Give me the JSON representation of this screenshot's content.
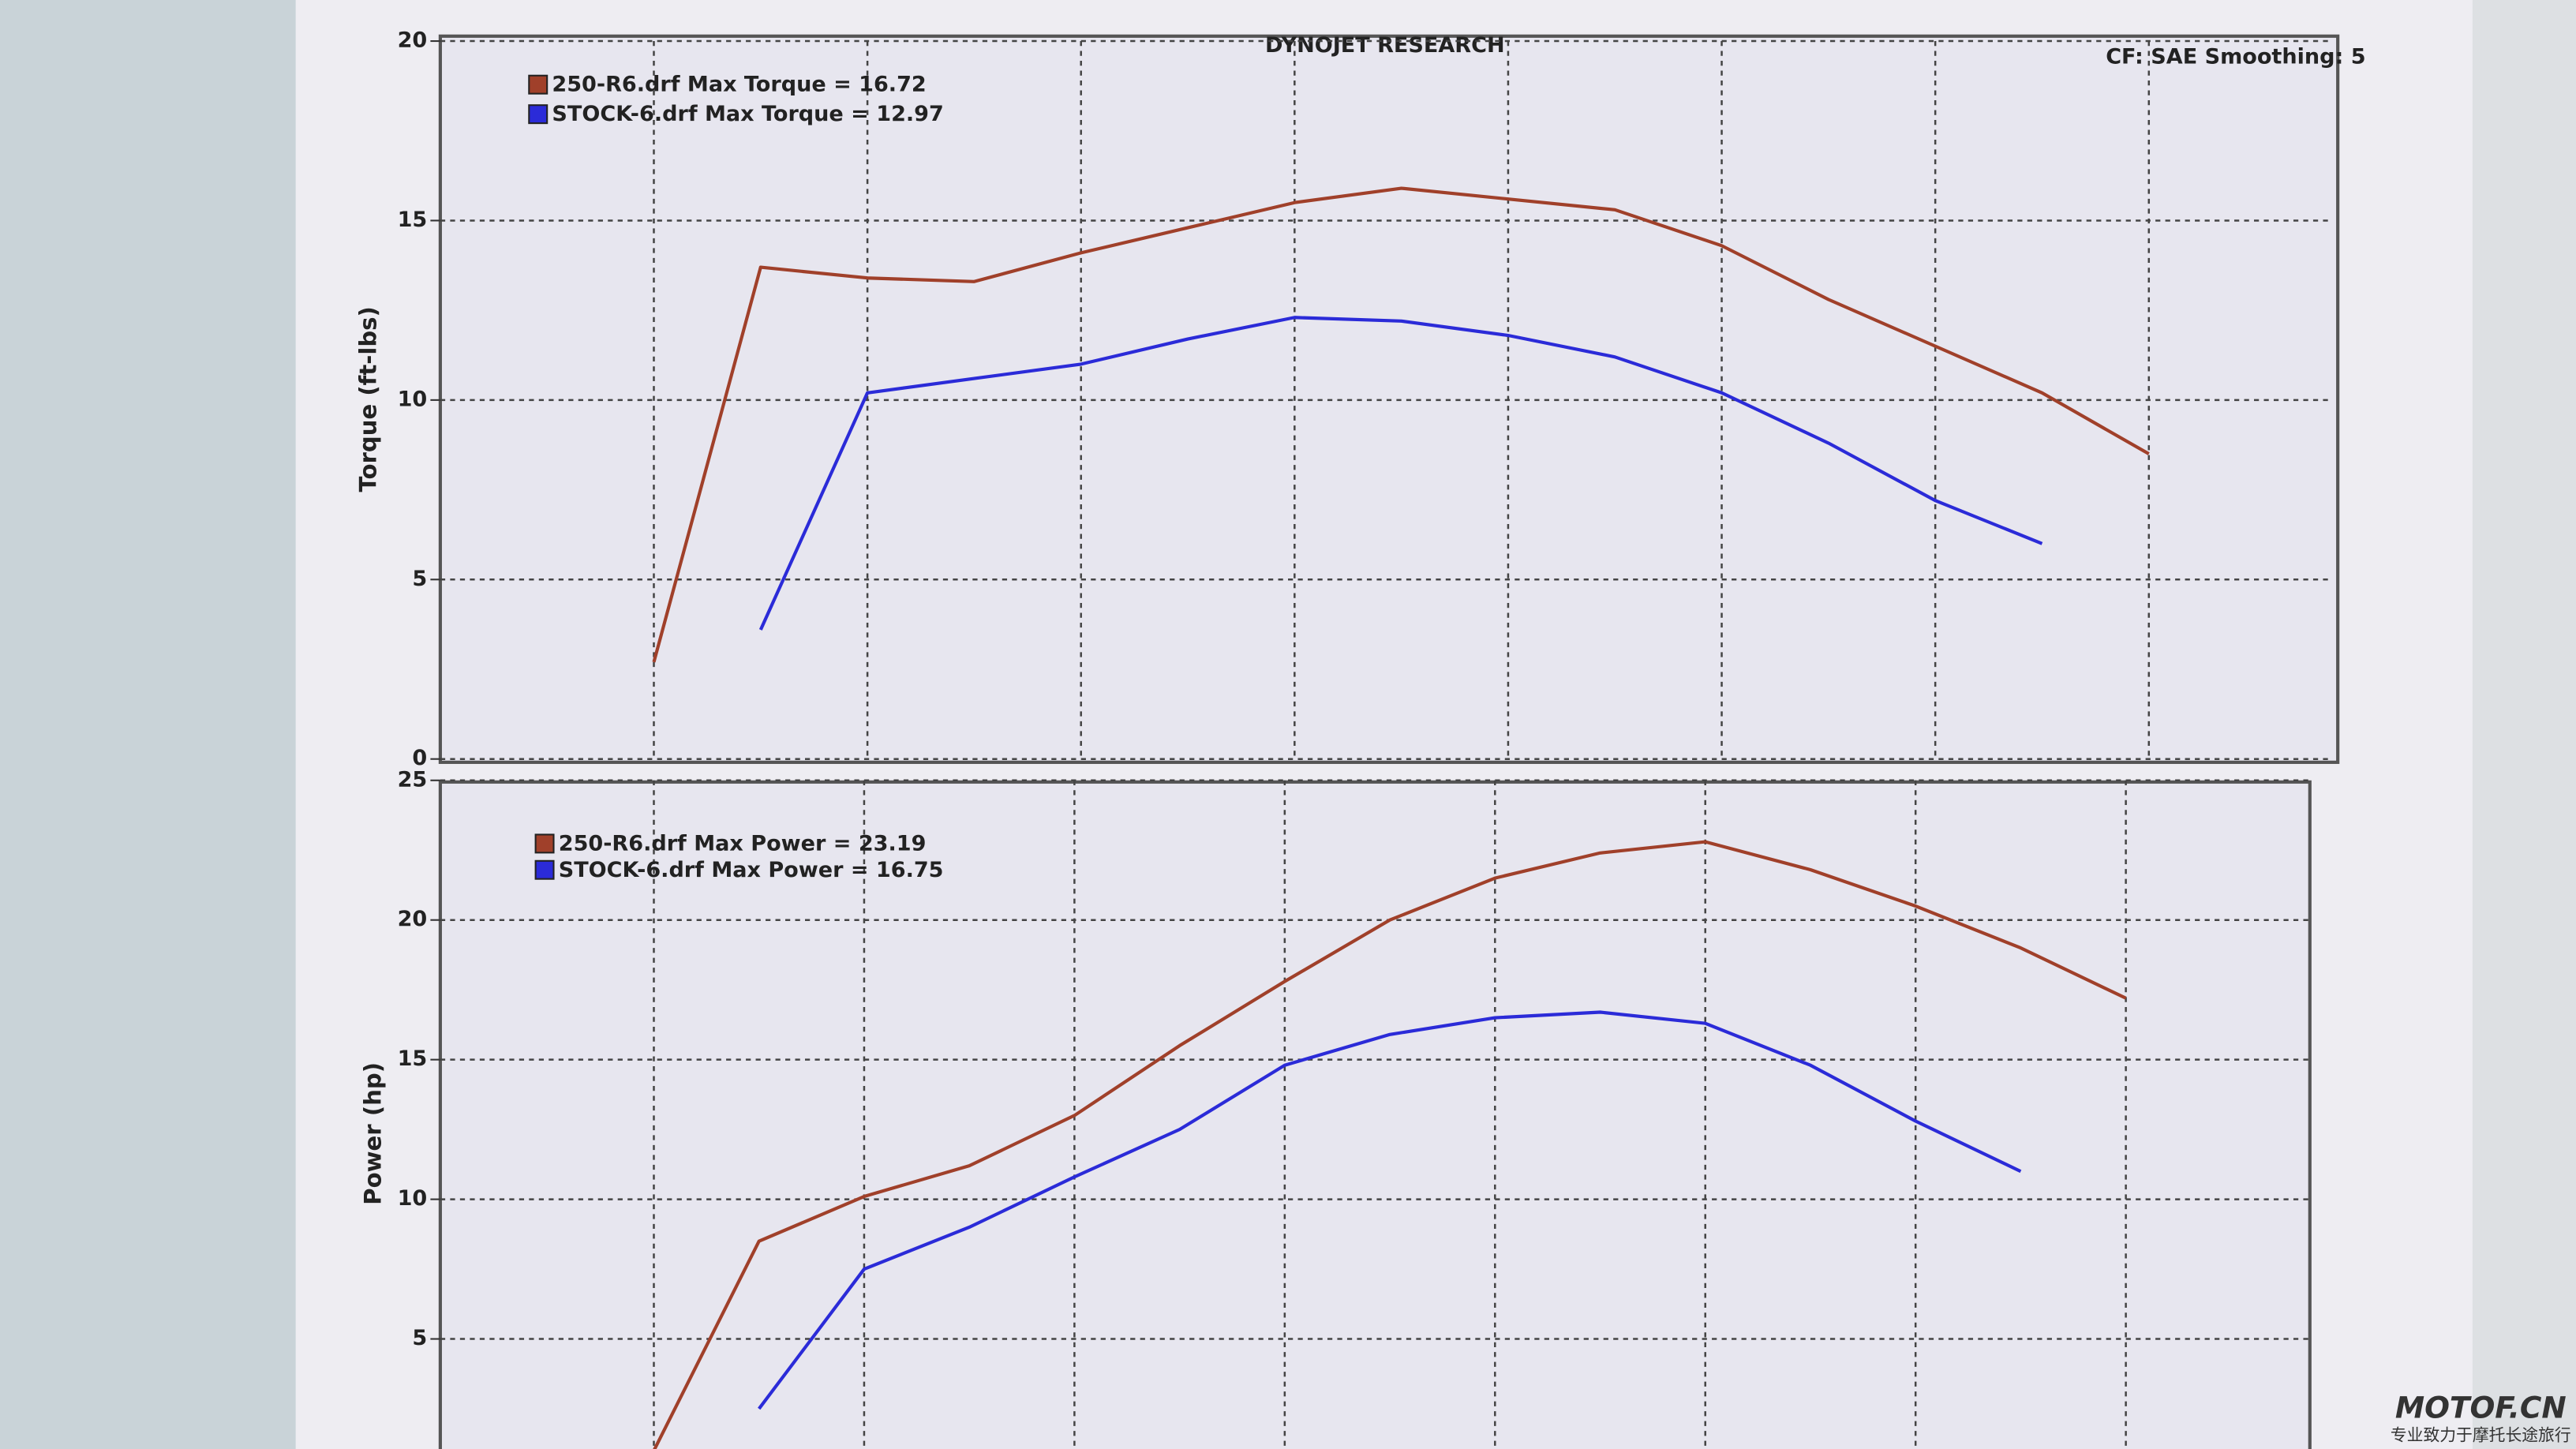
{
  "chart_data": [
    {
      "type": "line",
      "title": "DYNOJET RESEARCH",
      "subtitle": "CF: SAE  Smoothing: 5",
      "y_label": "Torque (ft-lbs)",
      "categories": [
        null,
        null,
        null,
        null,
        null,
        null,
        null,
        null,
        null,
        null,
        null,
        null,
        null,
        null,
        null
      ],
      "series": [
        {
          "name": "250-R6.drf Max Torque = 16.72",
          "color": "#a0402a",
          "values": [
            2.7,
            13.7,
            13.4,
            13.3,
            14.1,
            14.8,
            15.5,
            15.9,
            15.6,
            15.3,
            14.3,
            12.8,
            11.5,
            10.2,
            8.5
          ]
        },
        {
          "name": "STOCK-6.drf Max Torque = 12.97",
          "color": "#2b2bd8",
          "values": [
            null,
            3.6,
            10.2,
            10.6,
            11.0,
            11.7,
            12.3,
            12.2,
            11.8,
            11.2,
            10.2,
            8.8,
            7.2,
            6.0,
            null
          ]
        }
      ],
      "ylim": [
        0,
        20
      ],
      "yticks": [
        0,
        5,
        10,
        15,
        20
      ],
      "grid": true
    },
    {
      "type": "line",
      "y_label": "Power (hp)",
      "categories": [
        null,
        null,
        null,
        null,
        null,
        null,
        null,
        null,
        null,
        null,
        null,
        null,
        null,
        null,
        null
      ],
      "series": [
        {
          "name": "250-R6.drf Max Power = 23.19",
          "color": "#a0402a",
          "values": [
            1.0,
            8.5,
            10.1,
            11.2,
            13.0,
            15.5,
            17.8,
            20.0,
            21.5,
            22.4,
            22.8,
            21.8,
            20.5,
            19.0,
            17.2
          ]
        },
        {
          "name": "STOCK-6.drf Max Power = 16.75",
          "color": "#2b2bd8",
          "values": [
            null,
            2.5,
            7.5,
            9.0,
            10.8,
            12.5,
            14.8,
            15.9,
            16.5,
            16.7,
            16.3,
            14.8,
            12.8,
            11.0,
            null
          ]
        }
      ],
      "ylim": [
        0,
        25
      ],
      "yticks": [
        5,
        10,
        15,
        20,
        25
      ],
      "grid": true
    }
  ],
  "watermark": {
    "text": "MOTOF.CN",
    "subtext": "专业致力于摩托长途旅行"
  }
}
